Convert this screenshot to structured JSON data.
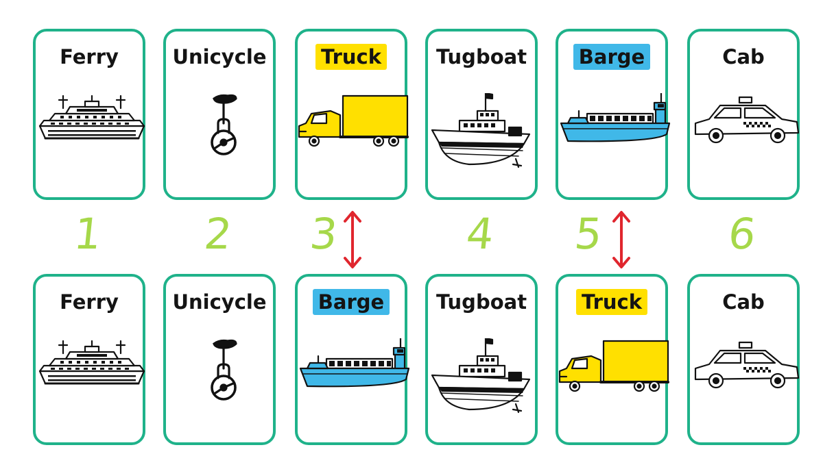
{
  "colors": {
    "card_border": "#1fb28a",
    "number": "#a6d84a",
    "truck_highlight": "#ffe000",
    "barge_highlight": "#40b8e8",
    "swap_arrow": "#e0262e"
  },
  "top_row": [
    {
      "label": "Ferry",
      "icon": "ferry-icon",
      "highlight": ""
    },
    {
      "label": "Unicycle",
      "icon": "unicycle-icon",
      "highlight": ""
    },
    {
      "label": "Truck",
      "icon": "truck-icon",
      "highlight": "#ffe000"
    },
    {
      "label": "Tugboat",
      "icon": "tugboat-icon",
      "highlight": ""
    },
    {
      "label": "Barge",
      "icon": "barge-icon",
      "highlight": "#40b8e8"
    },
    {
      "label": "Cab",
      "icon": "cab-icon",
      "highlight": ""
    }
  ],
  "bottom_row": [
    {
      "label": "Ferry",
      "icon": "ferry-icon",
      "highlight": ""
    },
    {
      "label": "Unicycle",
      "icon": "unicycle-icon",
      "highlight": ""
    },
    {
      "label": "Barge",
      "icon": "barge-icon",
      "highlight": "#40b8e8"
    },
    {
      "label": "Tugboat",
      "icon": "tugboat-icon",
      "highlight": ""
    },
    {
      "label": "Truck",
      "icon": "truck-icon",
      "highlight": "#ffe000"
    },
    {
      "label": "Cab",
      "icon": "cab-icon",
      "highlight": ""
    }
  ],
  "numbers": [
    "1",
    "2",
    "3",
    "4",
    "5",
    "6"
  ],
  "swaps": [
    "3",
    "5"
  ]
}
